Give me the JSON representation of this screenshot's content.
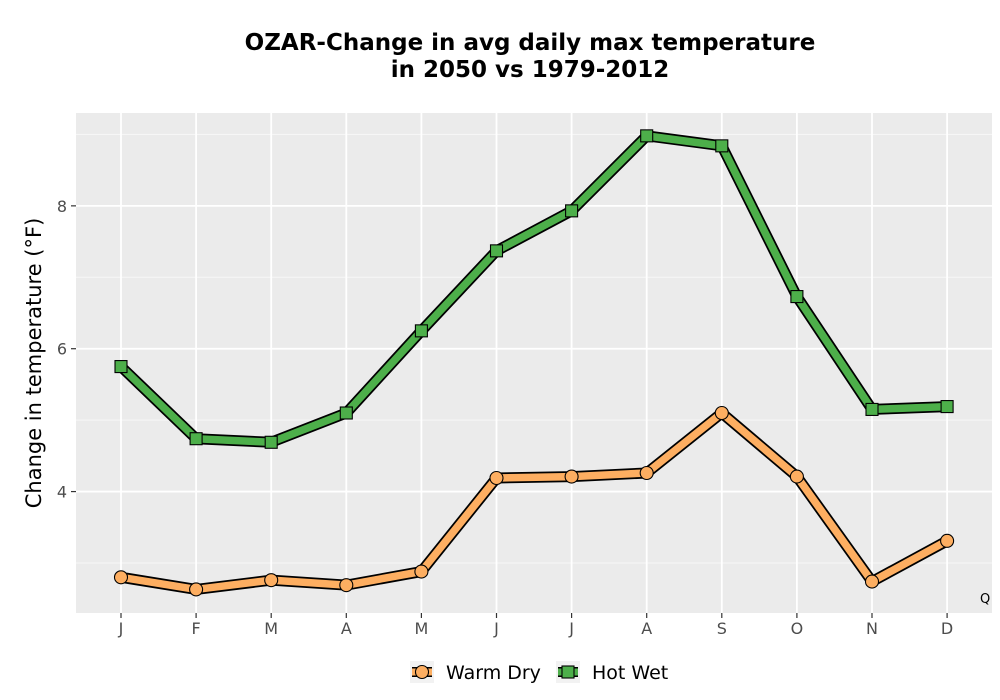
{
  "chart_data": {
    "type": "line",
    "title_lines": [
      "OZAR-Change in avg daily max temperature",
      "in 2050 vs 1979-2012"
    ],
    "ylabel": "Change in temperature (°F)",
    "xlabel": "",
    "categories": [
      "J",
      "F",
      "M",
      "A",
      "M",
      "J",
      "J",
      "A",
      "S",
      "O",
      "N",
      "D"
    ],
    "yticks": [
      4,
      6,
      8
    ],
    "ylim": [
      2.3,
      9.3
    ],
    "grid": true,
    "legend_position": "bottom",
    "corner_note": "Q",
    "series": [
      {
        "name": "Warm Dry",
        "marker": "circle",
        "color": "#fdae61",
        "values": [
          2.8,
          2.63,
          2.76,
          2.69,
          2.88,
          4.19,
          4.21,
          4.26,
          5.1,
          4.21,
          2.74,
          3.31
        ]
      },
      {
        "name": "Hot Wet",
        "marker": "square",
        "color": "#4daf4a",
        "values": [
          5.75,
          4.74,
          4.69,
          5.1,
          6.25,
          7.37,
          7.93,
          8.98,
          8.84,
          6.73,
          5.15,
          5.19
        ]
      }
    ]
  }
}
